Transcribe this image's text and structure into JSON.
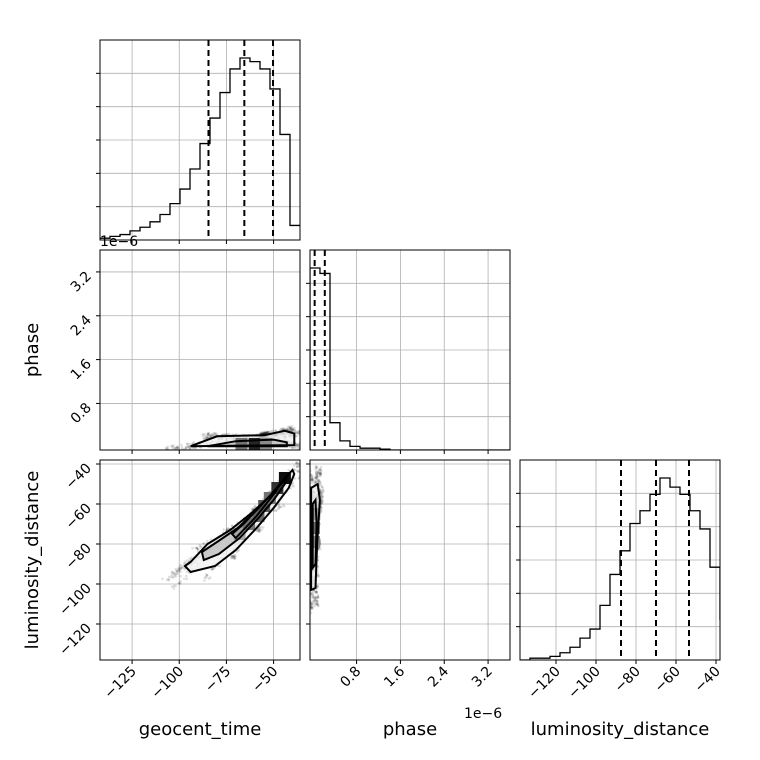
{
  "chart_data": {
    "type": "corner",
    "parameters": [
      "geocent_time",
      "phase",
      "luminosity_distance"
    ],
    "offset_text": "1e−6",
    "ticks": {
      "geocent_time": [
        -125,
        -100,
        -75,
        -50
      ],
      "phase": [
        0.8,
        1.6,
        2.4,
        3.2
      ],
      "luminosity_distance": [
        -120,
        -100,
        -80,
        -60,
        -40
      ]
    },
    "ranges": {
      "geocent_time": [
        -142,
        -36
      ],
      "phase": [
        -0.05,
        3.6
      ],
      "luminosity_distance": [
        -138,
        -38
      ]
    },
    "histograms": {
      "geocent_time": {
        "edges": [
          -142,
          -136.7,
          -131.4,
          -126.1,
          -120.8,
          -115.5,
          -110.2,
          -104.9,
          -99.6,
          -94.3,
          -89,
          -83.7,
          -78.4,
          -73.1,
          -67.8,
          -62.5,
          -57.2,
          -51.9,
          -46.6,
          -41.3,
          -36
        ],
        "counts": [
          0.01,
          0.02,
          0.03,
          0.05,
          0.07,
          0.1,
          0.14,
          0.2,
          0.28,
          0.39,
          0.53,
          0.67,
          0.81,
          0.94,
          1.0,
          0.98,
          0.94,
          0.83,
          0.58,
          0.08
        ],
        "quantiles": [
          -84.5,
          -65.5,
          -50.3
        ]
      },
      "phase": {
        "edges": [
          -0.05,
          0.132,
          0.315,
          0.497,
          0.68,
          0.863,
          1.045,
          1.228,
          1.41,
          1.593,
          1.775,
          1.958,
          2.14,
          2.323,
          2.505,
          2.688,
          2.87,
          3.053,
          3.235,
          3.418,
          3.6
        ],
        "counts": [
          1.0,
          0.97,
          0.15,
          0.05,
          0.02,
          0.01,
          0.01,
          0.005,
          0,
          0,
          0,
          0,
          0,
          0,
          0,
          0,
          0,
          0,
          0,
          0
        ],
        "quantiles": [
          0.035,
          0.22
        ]
      },
      "luminosity_distance": {
        "edges": [
          -138,
          -133,
          -128,
          -123,
          -118,
          -113,
          -108,
          -103,
          -98,
          -93,
          -88,
          -83,
          -78,
          -73,
          -68,
          -63,
          -58,
          -53,
          -48,
          -43,
          -38
        ],
        "counts": [
          0.0,
          0.01,
          0.01,
          0.02,
          0.04,
          0.07,
          0.12,
          0.17,
          0.3,
          0.47,
          0.6,
          0.75,
          0.82,
          0.91,
          1.0,
          0.95,
          0.91,
          0.82,
          0.72,
          0.51,
          0.22
        ],
        "quantiles": [
          -87.5,
          -70.0,
          -53.5
        ]
      }
    },
    "contours_2d": [
      {
        "x": "geocent_time",
        "y": "phase",
        "levels": [
          [
            [
              -94,
              0.02
            ],
            [
              -80,
              0.2
            ],
            [
              -55,
              0.22
            ],
            [
              -44,
              0.3
            ],
            [
              -39,
              0.25
            ],
            [
              -39,
              0.04
            ]
          ],
          [
            [
              -85,
              0.02
            ],
            [
              -70,
              0.11
            ],
            [
              -50,
              0.14
            ],
            [
              -43,
              0.09
            ],
            [
              -43,
              0.02
            ]
          ]
        ],
        "dense_cells": [
          {
            "x": -67,
            "y": 0.06,
            "density": 0.55
          },
          {
            "x": -60,
            "y": 0.06,
            "density": 0.85
          },
          {
            "x": -54,
            "y": 0.06,
            "density": 0.45
          }
        ]
      },
      {
        "x": "geocent_time",
        "y": "luminosity_distance",
        "levels": [
          [
            [
              -94,
              -89
            ],
            [
              -85,
              -80
            ],
            [
              -73,
              -73
            ],
            [
              -61,
              -64
            ],
            [
              -52,
              -56
            ],
            [
              -44,
              -47
            ],
            [
              -40,
              -43
            ],
            [
              -39,
              -45
            ],
            [
              -42,
              -52
            ],
            [
              -50,
              -62
            ],
            [
              -59,
              -72
            ],
            [
              -70,
              -83
            ],
            [
              -81,
              -91
            ],
            [
              -94,
              -94
            ],
            [
              -97,
              -91
            ]
          ],
          [
            [
              -88,
              -84
            ],
            [
              -80,
              -79
            ],
            [
              -69,
              -72
            ],
            [
              -60,
              -64
            ],
            [
              -52,
              -56
            ],
            [
              -46,
              -50
            ],
            [
              -43,
              -46
            ],
            [
              -44,
              -50
            ],
            [
              -50,
              -58
            ],
            [
              -58,
              -67
            ],
            [
              -68,
              -77
            ],
            [
              -79,
              -85
            ],
            [
              -87,
              -88
            ]
          ],
          [
            [
              -72,
              -75
            ],
            [
              -66,
              -70
            ],
            [
              -60,
              -64
            ],
            [
              -54,
              -58
            ],
            [
              -48,
              -52
            ],
            [
              -46,
              -49
            ],
            [
              -49,
              -54
            ],
            [
              -54,
              -60
            ],
            [
              -59,
              -66
            ],
            [
              -64,
              -71
            ],
            [
              -70,
              -77
            ]
          ]
        ],
        "dense_cells": [
          {
            "x": -68,
            "y": -75,
            "density": 0.35
          },
          {
            "x": -63,
            "y": -70,
            "density": 0.55
          },
          {
            "x": -58,
            "y": -66,
            "density": 0.6
          },
          {
            "x": -55,
            "y": -61,
            "density": 0.65
          },
          {
            "x": -52,
            "y": -57,
            "density": 0.55
          },
          {
            "x": -48,
            "y": -52,
            "density": 0.8
          },
          {
            "x": -44,
            "y": -47,
            "density": 0.95
          }
        ]
      },
      {
        "x": "phase",
        "y": "luminosity_distance",
        "levels": [
          [
            [
              -0.03,
              -103
            ],
            [
              -0.03,
              -52
            ],
            [
              0.09,
              -50
            ],
            [
              0.13,
              -58
            ],
            [
              0.08,
              -80
            ],
            [
              0.05,
              -102
            ]
          ],
          [
            [
              0.0,
              -92
            ],
            [
              0.0,
              -60
            ],
            [
              0.05,
              -58
            ],
            [
              0.07,
              -70
            ],
            [
              0.05,
              -90
            ]
          ]
        ],
        "dense_cells": [
          {
            "x": 0.02,
            "y": -65,
            "density": 0.4
          },
          {
            "x": 0.02,
            "y": -72,
            "density": 0.6
          },
          {
            "x": 0.02,
            "y": -79,
            "density": 0.5
          }
        ]
      }
    ],
    "grid": true
  }
}
